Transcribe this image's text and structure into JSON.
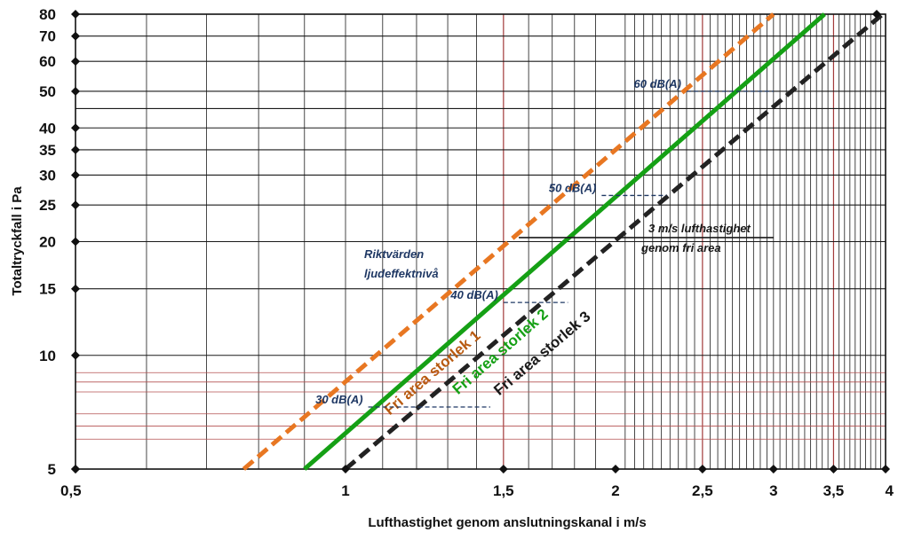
{
  "chart_data": {
    "type": "line",
    "title": "",
    "xlabel": "Lufthastighet genom anslutningskanal i m/s",
    "ylabel": "Totaltryckfall i Pa",
    "x_scale": "log",
    "y_scale": "log",
    "xlim": [
      0.5,
      4
    ],
    "ylim": [
      5,
      80
    ],
    "x_ticks": [
      0.5,
      1,
      1.5,
      2,
      2.5,
      3,
      3.5,
      4
    ],
    "x_tick_labels": [
      "0,5",
      "1",
      "1,5",
      "2",
      "2,5",
      "3",
      "3,5",
      "4"
    ],
    "y_ticks": [
      5,
      10,
      15,
      20,
      25,
      30,
      35,
      40,
      50,
      60,
      70,
      80
    ],
    "y_tick_labels": [
      "5",
      "10",
      "15",
      "20",
      "25",
      "30",
      "35",
      "40",
      "50",
      "60",
      "70",
      "80"
    ],
    "grid": true,
    "series": [
      {
        "name": "Fri area storlek 1",
        "color": "#e87722",
        "style": "dashed",
        "x": [
          0.77,
          3.0
        ],
        "y": [
          5,
          80
        ]
      },
      {
        "name": "Fri area storlek 2",
        "color": "#15a015",
        "style": "solid",
        "x": [
          0.9,
          3.42
        ],
        "y": [
          5,
          80
        ]
      },
      {
        "name": "Fri area storlek 3",
        "color": "#222222",
        "style": "dashed",
        "x": [
          1.0,
          3.97
        ],
        "y": [
          5,
          80
        ]
      }
    ],
    "annotations": {
      "title_lines": [
        "Riktvärden",
        "ljudeffektnivå"
      ],
      "levels": [
        {
          "label": "30 dB(A)",
          "x": [
            1.06,
            1.45
          ],
          "y": 7.3
        },
        {
          "label": "40 dB(A)",
          "x": [
            1.5,
            1.77
          ],
          "y": 13.8
        },
        {
          "label": "50 dB(A)",
          "x": [
            1.93,
            2.28
          ],
          "y": 26.5
        },
        {
          "label": "60 dB(A)",
          "x": [
            2.4,
            3.0
          ],
          "y": 50
        }
      ],
      "velocity_line": {
        "lines": [
          "3 m/s lufthastighet",
          "genom fri area"
        ],
        "x": [
          1.56,
          3.0
        ],
        "y": 20.5
      }
    }
  }
}
